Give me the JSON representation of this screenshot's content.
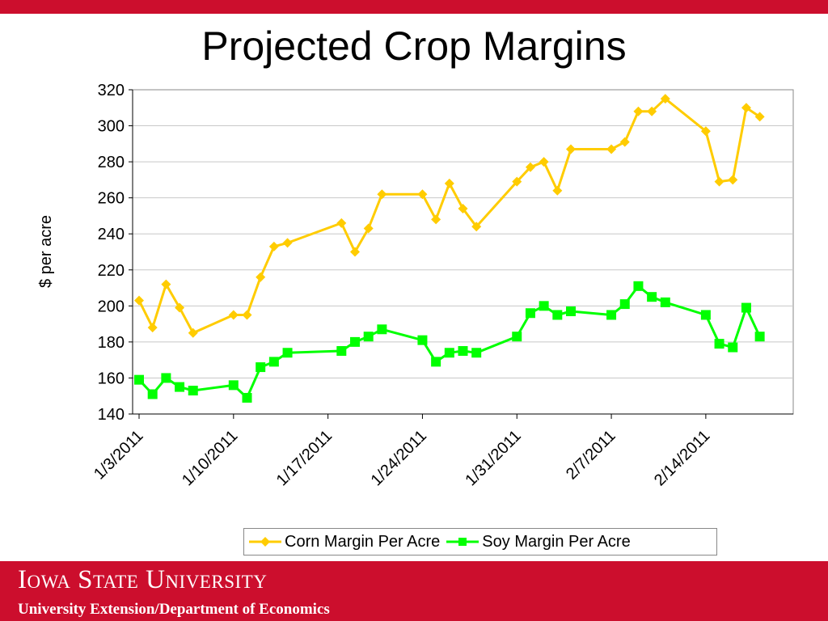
{
  "slide": {
    "title": "Projected Crop Margins"
  },
  "footer": {
    "name": "Iowa State University",
    "subtitle": "University Extension/Department of Economics"
  },
  "colors": {
    "brand_red": "#cc0e2d",
    "corn": "#ffcc00",
    "soy": "#00ff00"
  },
  "chart_data": {
    "type": "line",
    "title": "",
    "xlabel": "",
    "ylabel": "$ per acre",
    "ylim": [
      140,
      320
    ],
    "yticks": [
      140,
      160,
      180,
      200,
      220,
      240,
      260,
      280,
      300,
      320
    ],
    "xlim": [
      "1/3/2011",
      "2/20/2011"
    ],
    "xticks": [
      "1/3/2011",
      "1/10/2011",
      "1/17/2011",
      "1/24/2011",
      "1/31/2011",
      "2/7/2011",
      "2/14/2011"
    ],
    "grid": true,
    "legend_position": "bottom",
    "x": [
      "1/3/2011",
      "1/4/2011",
      "1/5/2011",
      "1/6/2011",
      "1/7/2011",
      "1/10/2011",
      "1/11/2011",
      "1/12/2011",
      "1/13/2011",
      "1/14/2011",
      "1/18/2011",
      "1/19/2011",
      "1/20/2011",
      "1/21/2011",
      "1/24/2011",
      "1/25/2011",
      "1/26/2011",
      "1/27/2011",
      "1/28/2011",
      "1/31/2011",
      "2/1/2011",
      "2/2/2011",
      "2/3/2011",
      "2/4/2011",
      "2/7/2011",
      "2/8/2011",
      "2/9/2011",
      "2/10/2011",
      "2/11/2011",
      "2/14/2011",
      "2/15/2011",
      "2/16/2011",
      "2/17/2011",
      "2/18/2011"
    ],
    "series": [
      {
        "name": "Corn Margin Per Acre",
        "marker": "diamond",
        "values": [
          203,
          188,
          212,
          199,
          185,
          195,
          195,
          216,
          233,
          235,
          246,
          230,
          243,
          262,
          262,
          248,
          268,
          254,
          244,
          269,
          277,
          280,
          264,
          287,
          287,
          291,
          308,
          308,
          315,
          297,
          269,
          270,
          310,
          305
        ]
      },
      {
        "name": "Soy Margin Per Acre",
        "marker": "square",
        "values": [
          159,
          151,
          160,
          155,
          153,
          156,
          149,
          166,
          169,
          174,
          175,
          180,
          183,
          187,
          181,
          169,
          174,
          175,
          174,
          183,
          196,
          200,
          195,
          197,
          195,
          201,
          211,
          205,
          202,
          195,
          179,
          177,
          199,
          183
        ]
      }
    ]
  }
}
